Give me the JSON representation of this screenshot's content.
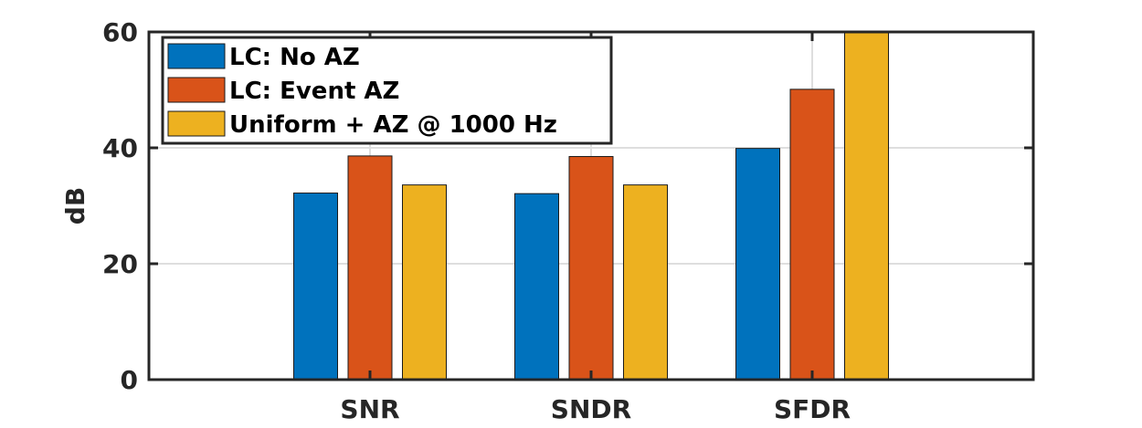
{
  "chart_data": {
    "type": "bar",
    "categories": [
      "SNR",
      "SNDR",
      "SFDR"
    ],
    "series": [
      {
        "name": "LC: No AZ",
        "color": "#0072BD",
        "values": [
          32.2,
          32.1,
          39.9
        ]
      },
      {
        "name": "LC: Event AZ",
        "color": "#D95319",
        "values": [
          38.6,
          38.5,
          50.1
        ]
      },
      {
        "name": "Uniform + AZ @ 1000 Hz",
        "color": "#EDB120",
        "values": [
          33.6,
          33.6,
          60
        ]
      }
    ],
    "title": "",
    "xlabel": "",
    "ylabel": "dB",
    "ylim": [
      0,
      60
    ],
    "yticks": [
      "0",
      "20",
      "40",
      "60"
    ],
    "grid": true,
    "legend_position": "top-left"
  }
}
